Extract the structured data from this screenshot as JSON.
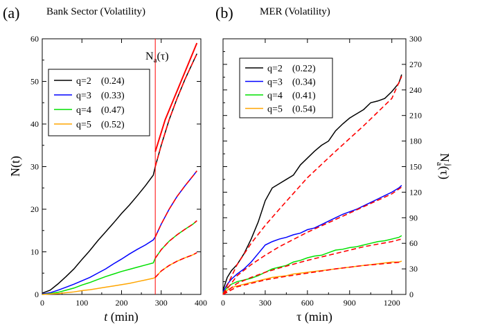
{
  "figure": {
    "panels": [
      {
        "letter": "(a)",
        "title": "Bank Sector (Volatility)",
        "xlabel_italic": "t",
        "xlabel_rest": " (min)",
        "ylabel": "N(t)",
        "annotation_main": "N",
        "annotation_sub": "a",
        "annotation_rest": "(τ)"
      },
      {
        "letter": "(b)",
        "title": "MER  (Volatility)",
        "xlabel": "τ (min)",
        "ylabel_right_main": "N",
        "ylabel_right_sub": "a",
        "ylabel_right_sup": "j",
        "ylabel_right_rest": "(τ)"
      }
    ]
  },
  "chart_data": [
    {
      "type": "line",
      "title": "Bank Sector (Volatility)",
      "xlabel": "t (min)",
      "ylabel": "N(t)",
      "xlim": [
        0,
        400
      ],
      "ylim": [
        0,
        60
      ],
      "xticks": [
        0,
        100,
        200,
        300,
        400
      ],
      "yticks": [
        0,
        10,
        20,
        30,
        40,
        50,
        60
      ],
      "grid": false,
      "legend_position": "top-left",
      "annotation": "Na(τ)",
      "vertical_marker_x": 285,
      "series": [
        {
          "name": "q=2    (0.24)",
          "color": "#000000",
          "x": [
            0,
            20,
            40,
            60,
            80,
            100,
            120,
            140,
            160,
            180,
            200,
            220,
            240,
            260,
            280,
            285,
            300,
            320,
            340,
            360,
            380,
            390
          ],
          "y": [
            0.3,
            1.0,
            2.5,
            4.2,
            6.0,
            8.2,
            10.3,
            12.6,
            14.7,
            16.8,
            19.0,
            21.0,
            23.2,
            25.5,
            28.0,
            30.0,
            35.0,
            41.0,
            46.0,
            50.5,
            54.5,
            56.5
          ]
        },
        {
          "name": "q=3    (0.33)",
          "color": "#0000ff",
          "x": [
            0,
            20,
            40,
            60,
            80,
            100,
            120,
            140,
            160,
            180,
            200,
            220,
            240,
            260,
            280,
            285,
            300,
            320,
            340,
            360,
            380,
            390
          ],
          "y": [
            0.1,
            0.4,
            1.0,
            1.7,
            2.4,
            3.2,
            4.0,
            5.0,
            6.0,
            7.2,
            8.3,
            9.5,
            10.6,
            11.6,
            12.8,
            13.5,
            16.5,
            20.0,
            23.0,
            25.5,
            27.8,
            29.0
          ]
        },
        {
          "name": "q=4    (0.47)",
          "color": "#00e000",
          "x": [
            0,
            20,
            40,
            60,
            80,
            100,
            120,
            140,
            160,
            180,
            200,
            220,
            240,
            260,
            280,
            285,
            300,
            320,
            340,
            360,
            380,
            390
          ],
          "y": [
            0.0,
            0.2,
            0.5,
            1.0,
            1.5,
            2.2,
            2.8,
            3.5,
            4.2,
            4.8,
            5.4,
            5.9,
            6.4,
            6.9,
            7.4,
            8.5,
            10.5,
            12.5,
            14.0,
            15.3,
            16.5,
            17.3
          ]
        },
        {
          "name": "q=5    (0.52)",
          "color": "#ffa500",
          "x": [
            0,
            20,
            40,
            60,
            80,
            100,
            120,
            140,
            160,
            180,
            200,
            220,
            240,
            260,
            280,
            285,
            300,
            320,
            340,
            360,
            380,
            390
          ],
          "y": [
            0.0,
            0.1,
            0.2,
            0.4,
            0.6,
            0.9,
            1.1,
            1.4,
            1.7,
            2.0,
            2.3,
            2.6,
            3.0,
            3.4,
            3.8,
            4.0,
            5.5,
            6.8,
            7.8,
            8.6,
            9.3,
            9.8
          ]
        }
      ],
      "fits": [
        {
          "color": "#ff0000",
          "style": "solid",
          "x": [
            285,
            310,
            330,
            350,
            370,
            390
          ],
          "y": [
            33.5,
            41.0,
            45.5,
            50.0,
            54.5,
            59.0
          ]
        },
        {
          "color": "#ff0000",
          "style": "dashed",
          "x": [
            285,
            300,
            320,
            340,
            360,
            380,
            390
          ],
          "y": [
            30.0,
            35.0,
            41.0,
            46.0,
            50.5,
            54.5,
            56.5
          ]
        },
        {
          "color": "#ff0000",
          "style": "dashed",
          "x": [
            285,
            300,
            320,
            340,
            360,
            380,
            390
          ],
          "y": [
            13.5,
            16.5,
            20.0,
            23.0,
            25.5,
            27.8,
            29.0
          ]
        },
        {
          "color": "#ff0000",
          "style": "dashed",
          "x": [
            285,
            300,
            320,
            340,
            360,
            380,
            390
          ],
          "y": [
            8.5,
            10.5,
            12.5,
            14.0,
            15.3,
            16.5,
            17.3
          ]
        },
        {
          "color": "#ff0000",
          "style": "dashed",
          "x": [
            285,
            300,
            320,
            340,
            360,
            380,
            390
          ],
          "y": [
            4.0,
            5.5,
            6.8,
            7.8,
            8.6,
            9.3,
            9.8
          ]
        }
      ]
    },
    {
      "type": "line",
      "title": "MER  (Volatility)",
      "xlabel": "τ (min)",
      "ylabel": "Naj(τ)",
      "xlim": [
        0,
        1300
      ],
      "ylim": [
        0,
        300
      ],
      "xticks": [
        0,
        300,
        600,
        900,
        1200
      ],
      "yticks": [
        0,
        30,
        60,
        90,
        120,
        150,
        180,
        210,
        240,
        270,
        300
      ],
      "y_axis_side": "right",
      "grid": false,
      "legend_position": "top-left",
      "series": [
        {
          "name": "q=2    (0.22)",
          "color": "#000000",
          "x": [
            0,
            30,
            60,
            100,
            150,
            200,
            250,
            300,
            350,
            400,
            450,
            500,
            550,
            600,
            650,
            700,
            750,
            800,
            850,
            900,
            950,
            1000,
            1050,
            1100,
            1150,
            1200,
            1250,
            1270
          ],
          "y": [
            5,
            20,
            28,
            35,
            48,
            65,
            85,
            110,
            125,
            130,
            135,
            140,
            152,
            160,
            168,
            175,
            180,
            192,
            200,
            207,
            212,
            217,
            225,
            227,
            230,
            238,
            248,
            258
          ]
        },
        {
          "name": "q=3    (0.34)",
          "color": "#0000ff",
          "x": [
            0,
            30,
            60,
            100,
            150,
            200,
            250,
            300,
            350,
            400,
            450,
            500,
            550,
            600,
            650,
            700,
            750,
            800,
            850,
            900,
            950,
            1000,
            1050,
            1100,
            1150,
            1200,
            1250,
            1270
          ],
          "y": [
            3,
            12,
            18,
            24,
            30,
            38,
            48,
            58,
            62,
            65,
            67,
            70,
            72,
            76,
            78,
            82,
            86,
            90,
            94,
            97,
            100,
            104,
            108,
            112,
            116,
            120,
            125,
            128
          ]
        },
        {
          "name": "q=4    (0.41)",
          "color": "#00e000",
          "x": [
            0,
            30,
            60,
            100,
            150,
            200,
            250,
            300,
            350,
            400,
            450,
            500,
            550,
            600,
            650,
            700,
            750,
            800,
            850,
            900,
            950,
            1000,
            1050,
            1100,
            1150,
            1200,
            1250,
            1270
          ],
          "y": [
            2,
            8,
            12,
            15,
            17,
            19,
            22,
            26,
            30,
            32,
            34,
            38,
            40,
            43,
            45,
            46,
            49,
            52,
            53,
            55,
            56,
            58,
            60,
            62,
            63,
            65,
            67,
            69
          ]
        },
        {
          "name": "q=5    (0.54)",
          "color": "#ffa500",
          "x": [
            0,
            30,
            60,
            100,
            150,
            200,
            250,
            300,
            350,
            400,
            450,
            500,
            550,
            600,
            650,
            700,
            750,
            800,
            850,
            900,
            950,
            1000,
            1050,
            1100,
            1150,
            1200,
            1250,
            1270
          ],
          "y": [
            1,
            5,
            8,
            10,
            12,
            14,
            16,
            18,
            20,
            21,
            22,
            24,
            25,
            26,
            27,
            28,
            29,
            30,
            31,
            32,
            33,
            34,
            35,
            36,
            37,
            38,
            38,
            39
          ]
        }
      ],
      "fits": [
        {
          "color": "#ff0000",
          "style": "dashed",
          "x": [
            0,
            100,
            200,
            300,
            400,
            600,
            800,
            1000,
            1200,
            1270
          ],
          "y": [
            0,
            35,
            60,
            81,
            100,
            137,
            168,
            198,
            230,
            256
          ]
        },
        {
          "color": "#ff0000",
          "style": "dashed",
          "x": [
            0,
            100,
            200,
            300,
            400,
            600,
            800,
            1000,
            1200,
            1270
          ],
          "y": [
            0,
            22,
            35,
            46,
            56,
            73,
            88,
            103,
            118,
            126
          ]
        },
        {
          "color": "#ff0000",
          "style": "dashed",
          "x": [
            0,
            100,
            200,
            300,
            400,
            600,
            800,
            1000,
            1200,
            1270
          ],
          "y": [
            0,
            13,
            20,
            26,
            31,
            40,
            48,
            56,
            62,
            65
          ]
        },
        {
          "color": "#ff0000",
          "style": "dashed",
          "x": [
            0,
            100,
            200,
            300,
            400,
            600,
            800,
            1000,
            1200,
            1270
          ],
          "y": [
            0,
            9,
            13,
            17,
            20,
            25,
            30,
            34,
            37,
            38
          ]
        }
      ]
    }
  ]
}
